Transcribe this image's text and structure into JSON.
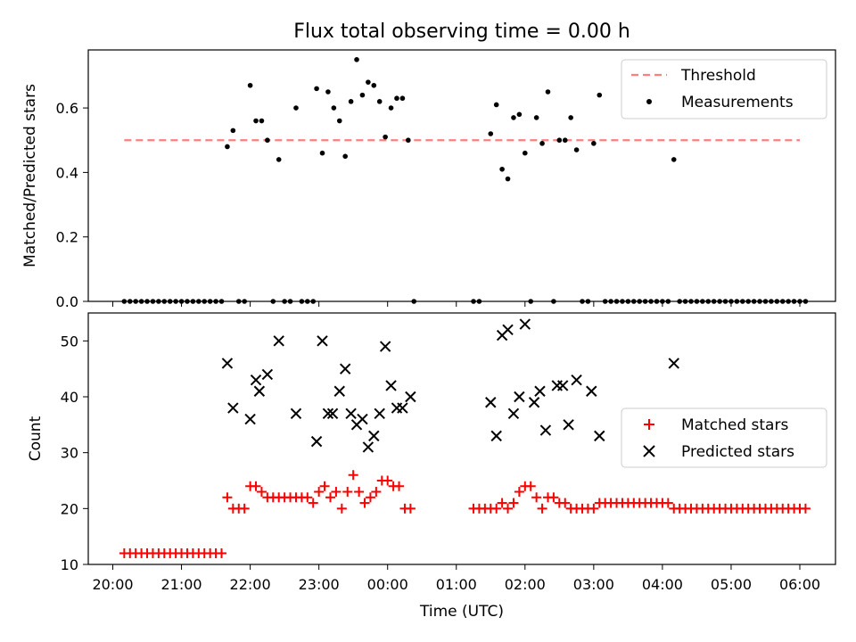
{
  "chart_data": [
    {
      "type": "scatter",
      "title": "Flux total observing time = 0.00 h",
      "xlabel": "",
      "ylabel": "Matched/Predicted stars",
      "ylim": [
        0,
        0.78
      ],
      "yticks": [
        "0.0",
        "0.2",
        "0.4",
        "0.6"
      ],
      "grid": false,
      "legend_position": "top-right",
      "threshold": {
        "name": "Threshold",
        "value": 0.5,
        "x_start": "20:10",
        "x_end": "06:00",
        "color": "#ff7f7f"
      },
      "series": [
        {
          "name": "Measurements",
          "color": "#000000",
          "points": [
            [
              "20:10",
              0
            ],
            [
              "20:15",
              0
            ],
            [
              "20:20",
              0
            ],
            [
              "20:25",
              0
            ],
            [
              "20:30",
              0
            ],
            [
              "20:35",
              0
            ],
            [
              "20:40",
              0
            ],
            [
              "20:45",
              0
            ],
            [
              "20:50",
              0
            ],
            [
              "20:55",
              0
            ],
            [
              "21:00",
              0
            ],
            [
              "21:05",
              0
            ],
            [
              "21:10",
              0
            ],
            [
              "21:15",
              0
            ],
            [
              "21:20",
              0
            ],
            [
              "21:25",
              0
            ],
            [
              "21:30",
              0
            ],
            [
              "21:35",
              0
            ],
            [
              "21:40",
              0.48
            ],
            [
              "21:45",
              0.53
            ],
            [
              "21:50",
              0
            ],
            [
              "21:55",
              0
            ],
            [
              "22:00",
              0.67
            ],
            [
              "22:05",
              0.56
            ],
            [
              "22:10",
              0.56
            ],
            [
              "22:15",
              0.5
            ],
            [
              "22:20",
              0
            ],
            [
              "22:25",
              0.44
            ],
            [
              "22:30",
              0
            ],
            [
              "22:35",
              0
            ],
            [
              "22:40",
              0.6
            ],
            [
              "22:45",
              0
            ],
            [
              "22:50",
              0
            ],
            [
              "22:55",
              0
            ],
            [
              "22:58",
              0.66
            ],
            [
              "23:03",
              0.46
            ],
            [
              "23:08",
              0.65
            ],
            [
              "23:13",
              0.6
            ],
            [
              "23:18",
              0.56
            ],
            [
              "23:23",
              0.45
            ],
            [
              "23:28",
              0.62
            ],
            [
              "23:33",
              0.75
            ],
            [
              "23:38",
              0.64
            ],
            [
              "23:43",
              0.68
            ],
            [
              "23:48",
              0.67
            ],
            [
              "23:53",
              0.62
            ],
            [
              "23:58",
              0.51
            ],
            [
              "00:03",
              0.6
            ],
            [
              "00:08",
              0.63
            ],
            [
              "00:13",
              0.63
            ],
            [
              "00:18",
              0.5
            ],
            [
              "00:23",
              0
            ],
            [
              "01:15",
              0
            ],
            [
              "01:20",
              0
            ],
            [
              "01:30",
              0.52
            ],
            [
              "01:35",
              0.61
            ],
            [
              "01:40",
              0.41
            ],
            [
              "01:45",
              0.38
            ],
            [
              "01:50",
              0.57
            ],
            [
              "01:55",
              0.58
            ],
            [
              "02:00",
              0.46
            ],
            [
              "02:05",
              0
            ],
            [
              "02:10",
              0.57
            ],
            [
              "02:15",
              0.49
            ],
            [
              "02:20",
              0.65
            ],
            [
              "02:25",
              0
            ],
            [
              "02:30",
              0.5
            ],
            [
              "02:35",
              0.5
            ],
            [
              "02:40",
              0.57
            ],
            [
              "02:45",
              0.47
            ],
            [
              "02:50",
              0
            ],
            [
              "02:55",
              0
            ],
            [
              "03:00",
              0.49
            ],
            [
              "03:05",
              0.64
            ],
            [
              "03:10",
              0
            ],
            [
              "03:15",
              0
            ],
            [
              "03:20",
              0
            ],
            [
              "03:25",
              0
            ],
            [
              "03:30",
              0
            ],
            [
              "03:35",
              0
            ],
            [
              "03:40",
              0
            ],
            [
              "03:45",
              0
            ],
            [
              "03:50",
              0
            ],
            [
              "03:55",
              0
            ],
            [
              "04:00",
              0
            ],
            [
              "04:05",
              0
            ],
            [
              "04:10",
              0.44
            ],
            [
              "04:15",
              0
            ],
            [
              "04:20",
              0
            ],
            [
              "04:25",
              0
            ],
            [
              "04:30",
              0
            ],
            [
              "04:35",
              0
            ],
            [
              "04:40",
              0
            ],
            [
              "04:45",
              0
            ],
            [
              "04:50",
              0
            ],
            [
              "04:55",
              0
            ],
            [
              "05:00",
              0
            ],
            [
              "05:05",
              0
            ],
            [
              "05:10",
              0
            ],
            [
              "05:15",
              0
            ],
            [
              "05:20",
              0
            ],
            [
              "05:25",
              0
            ],
            [
              "05:30",
              0
            ],
            [
              "05:35",
              0
            ],
            [
              "05:40",
              0
            ],
            [
              "05:45",
              0
            ],
            [
              "05:50",
              0
            ],
            [
              "05:55",
              0
            ],
            [
              "06:00",
              0
            ],
            [
              "06:05",
              0
            ]
          ]
        }
      ],
      "legend": [
        "Threshold",
        "Measurements"
      ]
    },
    {
      "type": "scatter",
      "title": "",
      "xlabel": "Time (UTC)",
      "ylabel": "Count",
      "ylim": [
        10,
        55
      ],
      "yticks": [
        "10",
        "20",
        "30",
        "40",
        "50"
      ],
      "xticks": [
        "20:00",
        "21:00",
        "22:00",
        "23:00",
        "00:00",
        "01:00",
        "02:00",
        "03:00",
        "04:00",
        "05:00",
        "06:00"
      ],
      "grid": false,
      "legend_position": "center-right",
      "series": [
        {
          "name": "Matched stars",
          "marker": "plus",
          "color": "#ff0000",
          "points": [
            [
              "20:10",
              12
            ],
            [
              "20:15",
              12
            ],
            [
              "20:20",
              12
            ],
            [
              "20:25",
              12
            ],
            [
              "20:30",
              12
            ],
            [
              "20:35",
              12
            ],
            [
              "20:40",
              12
            ],
            [
              "20:45",
              12
            ],
            [
              "20:50",
              12
            ],
            [
              "20:55",
              12
            ],
            [
              "21:00",
              12
            ],
            [
              "21:05",
              12
            ],
            [
              "21:10",
              12
            ],
            [
              "21:15",
              12
            ],
            [
              "21:20",
              12
            ],
            [
              "21:25",
              12
            ],
            [
              "21:30",
              12
            ],
            [
              "21:35",
              12
            ],
            [
              "21:40",
              22
            ],
            [
              "21:45",
              20
            ],
            [
              "21:50",
              20
            ],
            [
              "21:55",
              20
            ],
            [
              "22:00",
              24
            ],
            [
              "22:05",
              24
            ],
            [
              "22:10",
              23
            ],
            [
              "22:15",
              22
            ],
            [
              "22:20",
              22
            ],
            [
              "22:25",
              22
            ],
            [
              "22:30",
              22
            ],
            [
              "22:35",
              22
            ],
            [
              "22:40",
              22
            ],
            [
              "22:45",
              22
            ],
            [
              "22:50",
              22
            ],
            [
              "22:55",
              21
            ],
            [
              "23:00",
              23
            ],
            [
              "23:05",
              24
            ],
            [
              "23:10",
              22
            ],
            [
              "23:15",
              23
            ],
            [
              "23:20",
              20
            ],
            [
              "23:25",
              23
            ],
            [
              "23:30",
              26
            ],
            [
              "23:35",
              23
            ],
            [
              "23:40",
              21
            ],
            [
              "23:45",
              22
            ],
            [
              "23:50",
              23
            ],
            [
              "23:55",
              25
            ],
            [
              "00:00",
              25
            ],
            [
              "00:05",
              24
            ],
            [
              "00:10",
              24
            ],
            [
              "00:15",
              20
            ],
            [
              "00:20",
              20
            ],
            [
              "01:15",
              20
            ],
            [
              "01:20",
              20
            ],
            [
              "01:25",
              20
            ],
            [
              "01:30",
              20
            ],
            [
              "01:35",
              20
            ],
            [
              "01:40",
              21
            ],
            [
              "01:45",
              20
            ],
            [
              "01:50",
              21
            ],
            [
              "01:55",
              23
            ],
            [
              "02:00",
              24
            ],
            [
              "02:05",
              24
            ],
            [
              "02:10",
              22
            ],
            [
              "02:15",
              20
            ],
            [
              "02:20",
              22
            ],
            [
              "02:25",
              22
            ],
            [
              "02:30",
              21
            ],
            [
              "02:35",
              21
            ],
            [
              "02:40",
              20
            ],
            [
              "02:45",
              20
            ],
            [
              "02:50",
              20
            ],
            [
              "02:55",
              20
            ],
            [
              "03:00",
              20
            ],
            [
              "03:05",
              21
            ],
            [
              "03:10",
              21
            ],
            [
              "03:15",
              21
            ],
            [
              "03:20",
              21
            ],
            [
              "03:25",
              21
            ],
            [
              "03:30",
              21
            ],
            [
              "03:35",
              21
            ],
            [
              "03:40",
              21
            ],
            [
              "03:45",
              21
            ],
            [
              "03:50",
              21
            ],
            [
              "03:55",
              21
            ],
            [
              "04:00",
              21
            ],
            [
              "04:05",
              21
            ],
            [
              "04:10",
              20
            ],
            [
              "04:15",
              20
            ],
            [
              "04:20",
              20
            ],
            [
              "04:25",
              20
            ],
            [
              "04:30",
              20
            ],
            [
              "04:35",
              20
            ],
            [
              "04:40",
              20
            ],
            [
              "04:45",
              20
            ],
            [
              "04:50",
              20
            ],
            [
              "04:55",
              20
            ],
            [
              "05:00",
              20
            ],
            [
              "05:05",
              20
            ],
            [
              "05:10",
              20
            ],
            [
              "05:15",
              20
            ],
            [
              "05:20",
              20
            ],
            [
              "05:25",
              20
            ],
            [
              "05:30",
              20
            ],
            [
              "05:35",
              20
            ],
            [
              "05:40",
              20
            ],
            [
              "05:45",
              20
            ],
            [
              "05:50",
              20
            ],
            [
              "05:55",
              20
            ],
            [
              "06:00",
              20
            ],
            [
              "06:05",
              20
            ]
          ]
        },
        {
          "name": "Predicted stars",
          "marker": "x",
          "color": "#000000",
          "points": [
            [
              "21:40",
              46
            ],
            [
              "21:45",
              38
            ],
            [
              "22:00",
              36
            ],
            [
              "22:05",
              43
            ],
            [
              "22:08",
              41
            ],
            [
              "22:15",
              44
            ],
            [
              "22:25",
              50
            ],
            [
              "22:40",
              37
            ],
            [
              "22:58",
              32
            ],
            [
              "23:03",
              50
            ],
            [
              "23:08",
              37
            ],
            [
              "23:12",
              37
            ],
            [
              "23:18",
              41
            ],
            [
              "23:23",
              45
            ],
            [
              "23:28",
              37
            ],
            [
              "23:33",
              35
            ],
            [
              "23:38",
              36
            ],
            [
              "23:43",
              31
            ],
            [
              "23:48",
              33
            ],
            [
              "23:53",
              37
            ],
            [
              "23:58",
              49
            ],
            [
              "00:03",
              42
            ],
            [
              "00:08",
              38
            ],
            [
              "00:13",
              38
            ],
            [
              "00:20",
              40
            ],
            [
              "01:30",
              39
            ],
            [
              "01:35",
              33
            ],
            [
              "01:40",
              51
            ],
            [
              "01:45",
              52
            ],
            [
              "01:50",
              37
            ],
            [
              "01:55",
              40
            ],
            [
              "02:00",
              53
            ],
            [
              "02:08",
              39
            ],
            [
              "02:13",
              41
            ],
            [
              "02:18",
              34
            ],
            [
              "02:28",
              42
            ],
            [
              "02:33",
              42
            ],
            [
              "02:38",
              35
            ],
            [
              "02:45",
              43
            ],
            [
              "02:58",
              41
            ],
            [
              "03:05",
              33
            ],
            [
              "04:10",
              46
            ]
          ]
        }
      ],
      "legend": [
        "Matched stars",
        "Predicted stars"
      ]
    }
  ]
}
